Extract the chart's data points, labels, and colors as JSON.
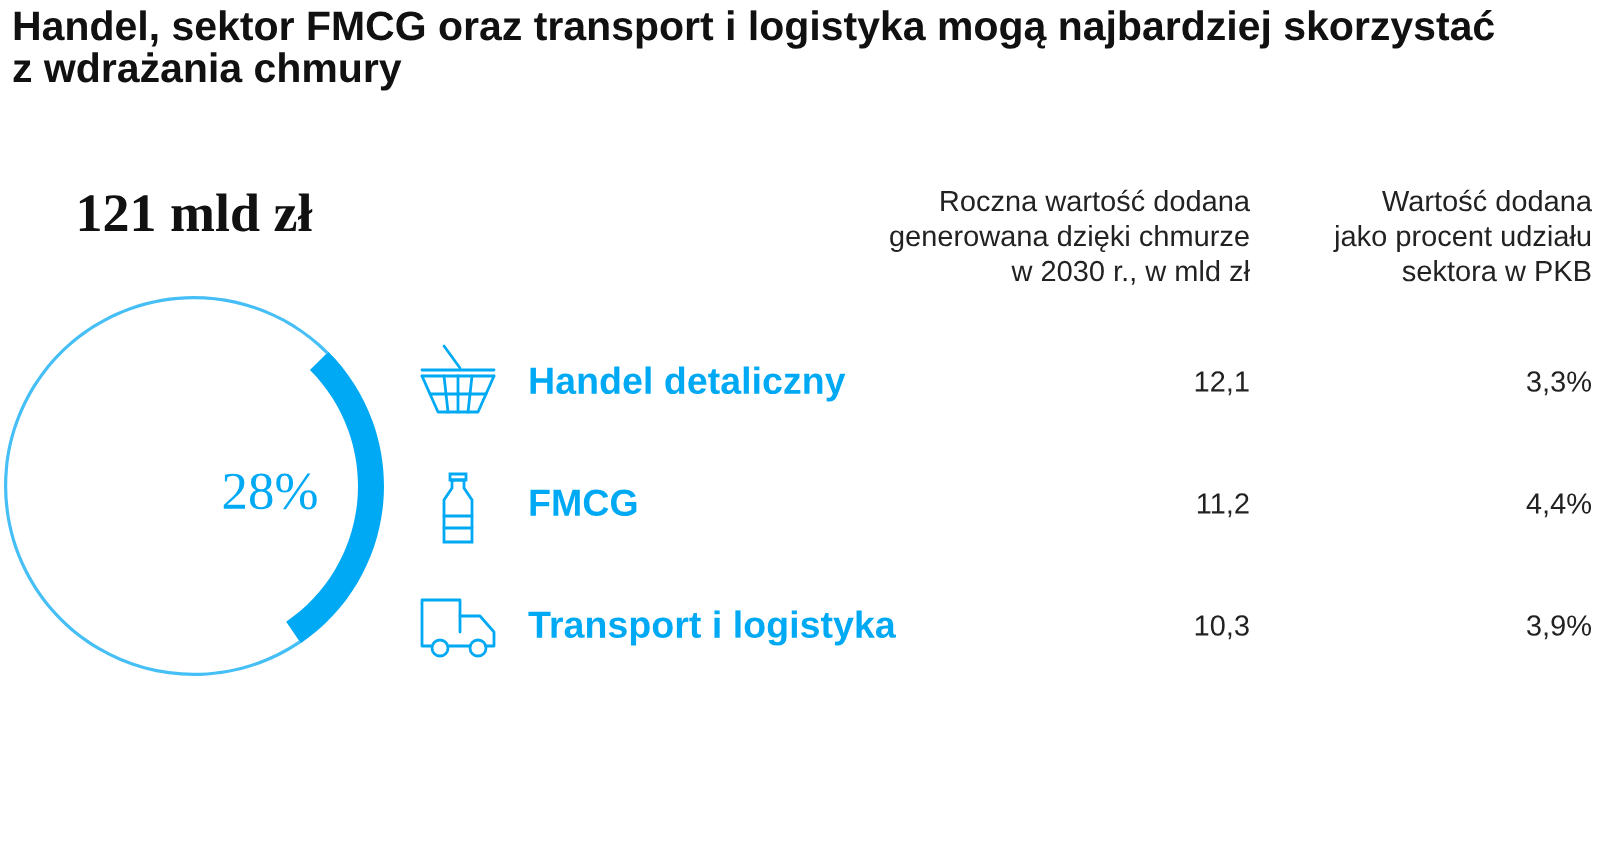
{
  "chart_data": [
    {
      "type": "donut",
      "title": "Handel, sektor FMCG oraz transport i logistyka mogą najbardziej skorzystać\nz wdrażania chmury",
      "annotations": [
        "121 mld zł"
      ],
      "categories": [
        null,
        null
      ],
      "values": [
        28,
        72
      ],
      "colors": [
        "#00a9f4",
        "#45bff5"
      ],
      "value_labels": [
        "28%",
        null
      ]
    },
    {
      "type": "other",
      "categories": [
        "Handel detaliczny",
        "FMCG",
        "Transport i logistyka"
      ],
      "series": [
        {
          "name": "Roczna wartość dodana\ngenerowana dzięki chmurze\nw 2030 r., w mld zł",
          "values": [
            12.1,
            11.2,
            10.3
          ],
          "value_labels": [
            "12,1",
            "11,2",
            "10,3"
          ]
        },
        {
          "name": "Wartość dodana\njako procent udziału\nsektora w PKB",
          "values": [
            3.3,
            4.4,
            3.9
          ],
          "value_labels": [
            "3,3%",
            "4,4%",
            "3,9%"
          ]
        }
      ]
    }
  ]
}
